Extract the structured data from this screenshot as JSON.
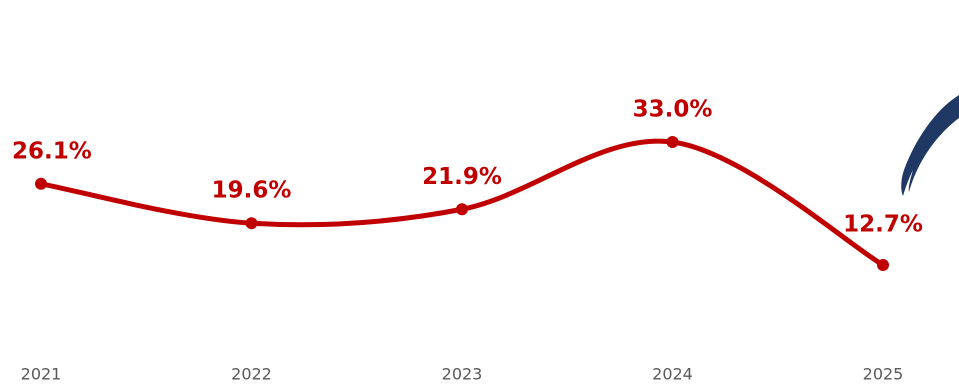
{
  "chart_data": {
    "type": "line",
    "categories": [
      "2021",
      "2022",
      "2023",
      "2024",
      "2025"
    ],
    "values": [
      26.1,
      19.6,
      21.9,
      33.0,
      12.7
    ],
    "value_labels": [
      "26.1%",
      "19.6%",
      "21.9%",
      "33.0%",
      "12.7%"
    ],
    "color": "#c00000",
    "smooth": true
  }
}
